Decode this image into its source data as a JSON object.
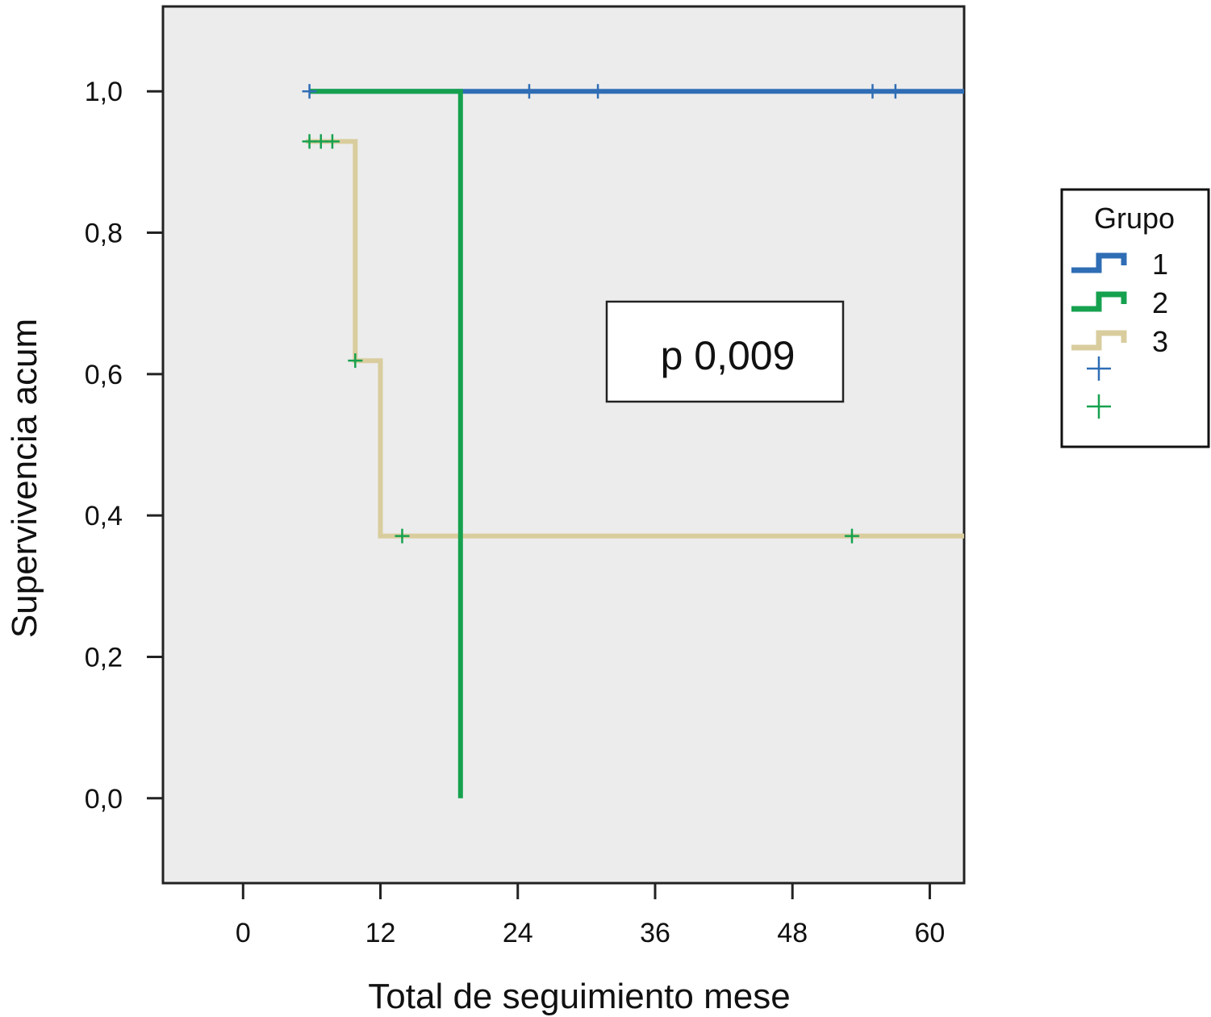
{
  "chart_data": {
    "type": "line",
    "subtype": "kaplan-meier step",
    "xlabel": "Total de seguimiento mese",
    "ylabel": "Supervivencia acum",
    "xlim": [
      -7,
      63
    ],
    "ylim": [
      -0.12,
      1.12
    ],
    "xticks": [
      0,
      12,
      24,
      36,
      48,
      60
    ],
    "xtick_labels": [
      "0",
      "12",
      "24",
      "36",
      "48",
      "60"
    ],
    "yticks": [
      0.0,
      0.2,
      0.4,
      0.6,
      0.8,
      1.0
    ],
    "ytick_labels": [
      "0,0",
      "0,2",
      "0,4",
      "0,6",
      "0,8",
      "1,0"
    ],
    "plot_background": "#ececec",
    "grid": false,
    "annotation": "p 0,009",
    "legend": {
      "title": "Grupo",
      "position": "right",
      "entries": [
        "1",
        "2",
        "3"
      ],
      "censor_marker": "+"
    },
    "series": [
      {
        "name": "1",
        "color": "#2f6db5",
        "steps": [
          [
            5.8,
            1.0
          ],
          [
            63,
            1.0
          ]
        ],
        "censored": [
          [
            5.8,
            1.0
          ],
          [
            25,
            1.0
          ],
          [
            31,
            1.0
          ],
          [
            55,
            1.0
          ],
          [
            57,
            1.0
          ]
        ]
      },
      {
        "name": "2",
        "color": "#16a14f",
        "steps": [
          [
            5.8,
            1.0
          ],
          [
            19,
            1.0
          ],
          [
            19,
            0.0
          ]
        ],
        "censored": []
      },
      {
        "name": "3",
        "color": "#d9cd9e",
        "steps": [
          [
            5.5,
            0.929
          ],
          [
            9.8,
            0.929
          ],
          [
            9.8,
            0.619
          ],
          [
            12,
            0.619
          ],
          [
            12,
            0.371
          ],
          [
            63,
            0.371
          ]
        ],
        "censored": [
          [
            5.8,
            0.929
          ],
          [
            6.8,
            0.929
          ],
          [
            7.8,
            0.929
          ],
          [
            9.8,
            0.619
          ],
          [
            13.9,
            0.371
          ],
          [
            53.2,
            0.371
          ]
        ],
        "censor_color": "#16a14f"
      }
    ],
    "legend_censor_colors": [
      "#2f6db5",
      "#16a14f"
    ]
  }
}
